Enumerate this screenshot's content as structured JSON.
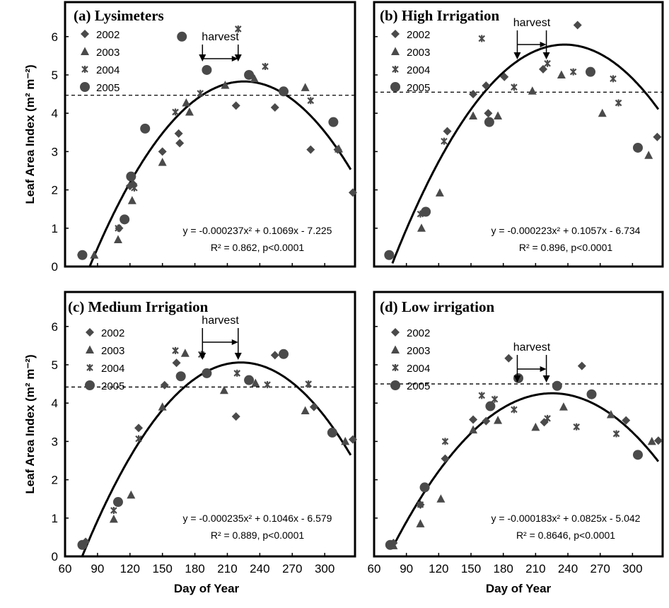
{
  "y_axis_label": "Leaf Area Index (m² m⁻²)",
  "x_axis_label": "Day of Year",
  "harvest_label": "harvest",
  "legend_years": [
    "2002",
    "2003",
    "2004",
    "2005"
  ],
  "x_ticks": [
    60,
    90,
    120,
    150,
    180,
    210,
    240,
    270,
    300
  ],
  "y_ticks": [
    0,
    1,
    2,
    3,
    4,
    5,
    6
  ],
  "chart_data": [
    {
      "type": "scatter",
      "title": "(a) Lysimeters",
      "xlim": [
        60,
        328
      ],
      "ylim": [
        0,
        6.9
      ],
      "threshold": 4.47,
      "harvest": [
        187,
        220
      ],
      "fit": {
        "a": -0.000237,
        "b": 0.1069,
        "c": -7.225,
        "x_range": [
          80,
          324
        ]
      },
      "equation": "y = -0.000237x² + 0.1069x - 7.225",
      "stats": "R² = 0.862, p<0.0001",
      "series": [
        {
          "name": "2002",
          "marker": "diamond",
          "points": [
            [
              75,
              0.3
            ],
            [
              110,
              1.0
            ],
            [
              120,
              2.1
            ],
            [
              123,
              2.15
            ],
            [
              150,
              3.0
            ],
            [
              165,
              3.47
            ],
            [
              166,
              3.22
            ],
            [
              218,
              4.2
            ],
            [
              254,
              4.15
            ],
            [
              287,
              3.05
            ],
            [
              312,
              3.05
            ],
            [
              326,
              1.93
            ]
          ]
        },
        {
          "name": "2003",
          "marker": "triangle",
          "points": [
            [
              87,
              0.3
            ],
            [
              109,
              0.7
            ],
            [
              122,
              1.72
            ],
            [
              150,
              2.72
            ],
            [
              172,
              4.27
            ],
            [
              175,
              4.03
            ],
            [
              208,
              4.73
            ],
            [
              235,
              4.9
            ],
            [
              282,
              4.67
            ],
            [
              313,
              3.07
            ]
          ]
        },
        {
          "name": "2004",
          "marker": "asterisk",
          "points": [
            [
              109,
              1.0
            ],
            [
              124,
              2.05
            ],
            [
              162,
              4.03
            ],
            [
              185,
              4.52
            ],
            [
              220,
              6.2
            ],
            [
              245,
              5.22
            ],
            [
              287,
              4.33
            ]
          ]
        },
        {
          "name": "2005",
          "marker": "circle",
          "points": [
            [
              76,
              0.3
            ],
            [
              115,
              1.23
            ],
            [
              121,
              2.35
            ],
            [
              134,
              3.6
            ],
            [
              168,
              6.0
            ],
            [
              191,
              5.13
            ],
            [
              230,
              5.0
            ],
            [
              262,
              4.57
            ],
            [
              308,
              3.77
            ]
          ]
        }
      ]
    },
    {
      "type": "scatter",
      "title": "(b) High Irrigation",
      "xlim": [
        60,
        328
      ],
      "ylim": [
        0,
        6.9
      ],
      "threshold": 4.55,
      "harvest": [
        193,
        220
      ],
      "fit": {
        "a": -0.000223,
        "b": 0.1057,
        "c": -6.734,
        "x_range": [
          77,
          324
        ]
      },
      "equation": "y = -0.000223x² + 0.1057x - 6.734",
      "stats": "R² = 0.896, p<0.0001",
      "series": [
        {
          "name": "2002",
          "marker": "diamond",
          "points": [
            [
              128,
              3.53
            ],
            [
              152,
              4.5
            ],
            [
              164,
              4.72
            ],
            [
              166,
              4.0
            ],
            [
              181,
              4.95
            ],
            [
              217,
              5.15
            ],
            [
              249,
              6.3
            ],
            [
              323,
              3.38
            ]
          ]
        },
        {
          "name": "2003",
          "marker": "triangle",
          "points": [
            [
              104,
              1.0
            ],
            [
              121,
              1.92
            ],
            [
              152,
              3.93
            ],
            [
              175,
              3.93
            ],
            [
              207,
              4.58
            ],
            [
              234,
              5.0
            ],
            [
              272,
              4.0
            ],
            [
              315,
              2.9
            ]
          ]
        },
        {
          "name": "2004",
          "marker": "asterisk",
          "points": [
            [
              75,
              0.3
            ],
            [
              103,
              1.37
            ],
            [
              125,
              3.27
            ],
            [
              160,
              5.95
            ],
            [
              190,
              4.68
            ],
            [
              221,
              5.3
            ],
            [
              245,
              5.08
            ],
            [
              282,
              4.9
            ],
            [
              287,
              4.27
            ]
          ]
        },
        {
          "name": "2005",
          "marker": "circle",
          "points": [
            [
              74,
              0.3
            ],
            [
              108,
              1.43
            ],
            [
              167,
              3.77
            ],
            [
              261,
              5.08
            ],
            [
              305,
              3.1
            ]
          ]
        }
      ]
    },
    {
      "type": "scatter",
      "title": "(c) Medium Irrigation",
      "xlim": [
        60,
        328
      ],
      "ylim": [
        0,
        6.9
      ],
      "threshold": 4.42,
      "harvest": [
        187,
        220
      ],
      "fit": {
        "a": -0.000235,
        "b": 0.1046,
        "c": -6.579,
        "x_range": [
          76,
          324
        ]
      },
      "equation": "y = -0.000235x² + 0.1046x - 6.579",
      "stats": "R² = 0.889, p<0.0001",
      "series": [
        {
          "name": "2002",
          "marker": "diamond",
          "points": [
            [
              79,
              0.38
            ],
            [
              128,
              3.35
            ],
            [
              152,
              4.47
            ],
            [
              163,
              5.05
            ],
            [
              218,
              3.65
            ],
            [
              254,
              5.25
            ],
            [
              290,
              3.9
            ],
            [
              326,
              3.05
            ]
          ]
        },
        {
          "name": "2003",
          "marker": "triangle",
          "points": [
            [
              105,
              0.97
            ],
            [
              121,
              1.6
            ],
            [
              150,
              3.9
            ],
            [
              171,
              5.3
            ],
            [
              207,
              4.33
            ],
            [
              236,
              4.52
            ],
            [
              282,
              3.8
            ],
            [
              319,
              3.0
            ]
          ]
        },
        {
          "name": "2004",
          "marker": "asterisk",
          "points": [
            [
              105,
              1.2
            ],
            [
              128,
              3.07
            ],
            [
              162,
              5.37
            ],
            [
              186,
              5.27
            ],
            [
              219,
              4.78
            ],
            [
              247,
              4.48
            ],
            [
              285,
              4.5
            ]
          ]
        },
        {
          "name": "2005",
          "marker": "circle",
          "points": [
            [
              76,
              0.3
            ],
            [
              109,
              1.42
            ],
            [
              167,
              4.7
            ],
            [
              191,
              4.78
            ],
            [
              230,
              4.6
            ],
            [
              262,
              5.28
            ],
            [
              307,
              3.23
            ]
          ]
        }
      ]
    },
    {
      "type": "scatter",
      "title": "(d) Low irrigation",
      "xlim": [
        60,
        328
      ],
      "ylim": [
        0,
        6.9
      ],
      "threshold": 4.5,
      "harvest": [
        193,
        220
      ],
      "fit": {
        "a": -0.000183,
        "b": 0.0825,
        "c": -5.042,
        "x_range": [
          77,
          324
        ]
      },
      "equation": "y = -0.000183x² + 0.0825x - 5.042",
      "stats": "R² = 0.8646, p<0.0001",
      "series": [
        {
          "name": "2002",
          "marker": "diamond",
          "points": [
            [
              78,
              0.35
            ],
            [
              103,
              1.35
            ],
            [
              126,
              2.55
            ],
            [
              152,
              3.57
            ],
            [
              164,
              3.53
            ],
            [
              185,
              5.17
            ],
            [
              218,
              3.5
            ],
            [
              253,
              4.97
            ],
            [
              294,
              3.55
            ],
            [
              324,
              3.02
            ]
          ]
        },
        {
          "name": "2003",
          "marker": "triangle",
          "points": [
            [
              78,
              0.28
            ],
            [
              103,
              0.85
            ],
            [
              122,
              1.5
            ],
            [
              152,
              3.3
            ],
            [
              175,
              3.55
            ],
            [
              210,
              3.37
            ],
            [
              236,
              3.9
            ],
            [
              280,
              3.7
            ],
            [
              318,
              3.0
            ]
          ]
        },
        {
          "name": "2004",
          "marker": "asterisk",
          "points": [
            [
              103,
              1.35
            ],
            [
              126,
              3.0
            ],
            [
              160,
              4.2
            ],
            [
              172,
              4.1
            ],
            [
              190,
              3.83
            ],
            [
              221,
              3.6
            ],
            [
              248,
              3.38
            ],
            [
              285,
              3.2
            ]
          ]
        },
        {
          "name": "2005",
          "marker": "circle",
          "points": [
            [
              75,
              0.3
            ],
            [
              107,
              1.8
            ],
            [
              168,
              3.92
            ],
            [
              194,
              4.65
            ],
            [
              230,
              4.45
            ],
            [
              262,
              4.23
            ],
            [
              305,
              2.65
            ]
          ]
        }
      ]
    }
  ]
}
